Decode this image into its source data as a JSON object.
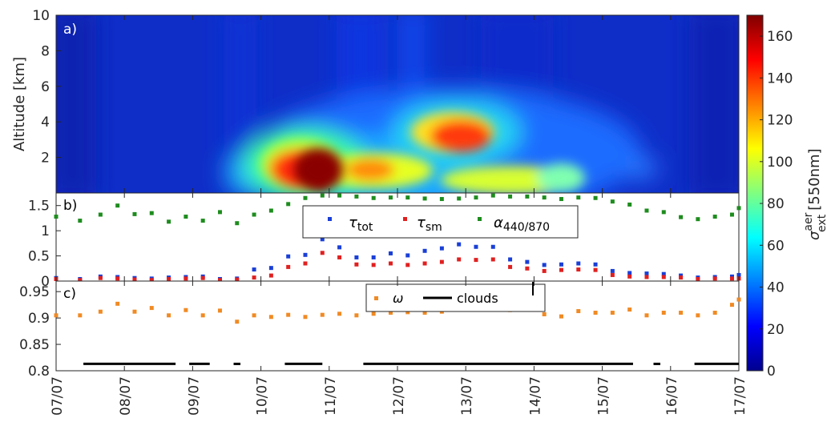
{
  "chart_data": [
    {
      "panel": "a)",
      "type": "heatmap",
      "ylabel": "Altitude [km]",
      "ylim": [
        0,
        10
      ],
      "yticks": [
        2,
        4,
        6,
        8,
        10
      ],
      "colorbar": {
        "label_main": "σ",
        "label_sup": "aer",
        "label_sub": "ext",
        "label_rest": "[550nm]",
        "range": [
          0,
          170
        ],
        "ticks": [
          0,
          20,
          40,
          60,
          80,
          100,
          120,
          140,
          160
        ],
        "colormap": "jet"
      },
      "features": [
        {
          "x": 10.75,
          "altitude": 1.4,
          "value": 170
        },
        {
          "x": 10.4,
          "altitude": 1.2,
          "value": 140
        },
        {
          "x": 11.7,
          "altitude": 1.3,
          "value": 120
        },
        {
          "x": 12.7,
          "altitude": 3.3,
          "value": 140
        },
        {
          "x": 13.0,
          "altitude": 3.0,
          "value": 140
        },
        {
          "x": 12.2,
          "altitude": 2.5,
          "value": 90
        },
        {
          "x": 13.6,
          "altitude": 1.2,
          "value": 90
        },
        {
          "x": 14.5,
          "altitude": 0.8,
          "value": 80
        },
        {
          "x": 9.8,
          "altitude": 1.0,
          "value": 60
        }
      ]
    },
    {
      "panel": "b)",
      "type": "scatter",
      "ylim": [
        0,
        1.75
      ],
      "yticks": [
        "0",
        "0.5",
        "1",
        "1.5"
      ],
      "legend": {
        "placement": "top-center"
      },
      "series": [
        {
          "name_main": "τ",
          "name_sub": "tot",
          "color": "#1a3fd6",
          "x": [
            7.0,
            7.35,
            7.65,
            7.9,
            8.15,
            8.4,
            8.65,
            8.9,
            9.15,
            9.4,
            9.65,
            9.9,
            10.15,
            10.4,
            10.65,
            10.9,
            11.15,
            11.4,
            11.65,
            11.9,
            12.15,
            12.4,
            12.65,
            12.9,
            13.15,
            13.4,
            13.65,
            13.9,
            14.15,
            14.4,
            14.65,
            14.9,
            15.15,
            15.4,
            15.65,
            15.9,
            16.15,
            16.4,
            16.65,
            16.9,
            17.0
          ],
          "y": [
            0.06,
            0.04,
            0.09,
            0.08,
            0.06,
            0.05,
            0.07,
            0.08,
            0.09,
            0.04,
            0.05,
            0.23,
            0.26,
            0.49,
            0.52,
            0.83,
            0.67,
            0.47,
            0.47,
            0.55,
            0.51,
            0.6,
            0.65,
            0.73,
            0.68,
            0.68,
            0.43,
            0.38,
            0.32,
            0.33,
            0.35,
            0.33,
            0.2,
            0.16,
            0.15,
            0.14,
            0.11,
            0.07,
            0.08,
            0.09,
            0.12
          ]
        },
        {
          "name_main": "τ",
          "name_sub": "sm",
          "color": "#e02020",
          "x": [
            7.0,
            7.35,
            7.65,
            7.9,
            8.15,
            8.4,
            8.65,
            8.9,
            9.15,
            9.4,
            9.65,
            9.9,
            10.15,
            10.4,
            10.65,
            10.9,
            11.15,
            11.4,
            11.65,
            11.9,
            12.15,
            12.4,
            12.65,
            12.9,
            13.15,
            13.4,
            13.65,
            13.9,
            14.15,
            14.4,
            14.65,
            14.9,
            15.15,
            15.4,
            15.65,
            15.9,
            16.15,
            16.4,
            16.65,
            16.9,
            17.0
          ],
          "y": [
            0.04,
            0.02,
            0.06,
            0.05,
            0.03,
            0.02,
            0.04,
            0.05,
            0.06,
            0.02,
            0.03,
            0.07,
            0.11,
            0.28,
            0.35,
            0.56,
            0.47,
            0.33,
            0.32,
            0.35,
            0.32,
            0.35,
            0.38,
            0.43,
            0.42,
            0.43,
            0.28,
            0.25,
            0.2,
            0.22,
            0.23,
            0.22,
            0.12,
            0.09,
            0.08,
            0.08,
            0.07,
            0.04,
            0.05,
            0.05,
            0.05
          ]
        },
        {
          "name_main": "α",
          "name_sub": "440/870",
          "color": "#1e8c1e",
          "x": [
            7.0,
            7.35,
            7.65,
            7.9,
            8.15,
            8.4,
            8.65,
            8.9,
            9.15,
            9.4,
            9.65,
            9.9,
            10.15,
            10.4,
            10.65,
            10.9,
            11.15,
            11.4,
            11.65,
            11.9,
            12.15,
            12.4,
            12.65,
            12.9,
            13.15,
            13.4,
            13.65,
            13.9,
            14.15,
            14.4,
            14.65,
            14.9,
            15.15,
            15.4,
            15.65,
            15.9,
            16.15,
            16.4,
            16.65,
            16.9,
            17.0
          ],
          "y": [
            1.28,
            1.2,
            1.32,
            1.5,
            1.33,
            1.35,
            1.18,
            1.28,
            1.2,
            1.37,
            1.15,
            1.32,
            1.4,
            1.53,
            1.65,
            1.7,
            1.7,
            1.68,
            1.65,
            1.66,
            1.66,
            1.64,
            1.63,
            1.64,
            1.66,
            1.7,
            1.68,
            1.68,
            1.66,
            1.63,
            1.66,
            1.65,
            1.58,
            1.52,
            1.4,
            1.37,
            1.27,
            1.23,
            1.28,
            1.32,
            1.45
          ]
        }
      ]
    },
    {
      "panel": "c)",
      "type": "scatter",
      "ylim": [
        0.8,
        0.97
      ],
      "yticks": [
        "0.8",
        "0.85",
        "0.9",
        "0.95"
      ],
      "legend": {
        "placement": "top-center"
      },
      "series": [
        {
          "name": "ω",
          "color": "#f08a24",
          "x": [
            7.0,
            7.35,
            7.65,
            7.9,
            8.15,
            8.4,
            8.65,
            8.9,
            9.15,
            9.4,
            9.65,
            9.9,
            10.15,
            10.4,
            10.65,
            10.9,
            11.15,
            11.4,
            11.65,
            11.9,
            12.15,
            12.4,
            12.65,
            12.9,
            13.15,
            13.4,
            13.65,
            13.9,
            14.15,
            14.4,
            14.65,
            14.9,
            15.15,
            15.4,
            15.65,
            15.9,
            16.15,
            16.4,
            16.65,
            16.9,
            17.0
          ],
          "y": [
            0.905,
            0.905,
            0.912,
            0.927,
            0.912,
            0.919,
            0.905,
            0.915,
            0.905,
            0.914,
            0.893,
            0.905,
            0.902,
            0.906,
            0.902,
            0.906,
            0.908,
            0.905,
            0.908,
            0.91,
            0.911,
            0.91,
            0.912,
            0.918,
            0.917,
            0.92,
            0.915,
            0.916,
            0.907,
            0.903,
            0.913,
            0.91,
            0.91,
            0.916,
            0.905,
            0.91,
            0.91,
            0.905,
            0.91,
            0.925,
            0.935
          ]
        },
        {
          "name": "clouds",
          "color": "#000000",
          "style": "line-segments",
          "y": 0.813,
          "segments": [
            [
              7.4,
              8.75
            ],
            [
              8.95,
              9.25
            ],
            [
              9.6,
              9.7
            ],
            [
              10.35,
              10.9
            ],
            [
              11.5,
              15.45
            ],
            [
              15.75,
              15.85
            ],
            [
              16.35,
              17.0
            ]
          ]
        }
      ]
    }
  ],
  "panel_labels": {
    "a": "a)",
    "b": "b)",
    "c": "c)"
  },
  "x_axis": {
    "range": [
      7,
      17
    ],
    "tick_labels": [
      "07/07",
      "08/07",
      "09/07",
      "10/07",
      "11/07",
      "12/07",
      "13/07",
      "14/07",
      "15/07",
      "16/07",
      "17/07"
    ]
  },
  "colors": {
    "axis": "#262626",
    "background": "#ffffff"
  }
}
